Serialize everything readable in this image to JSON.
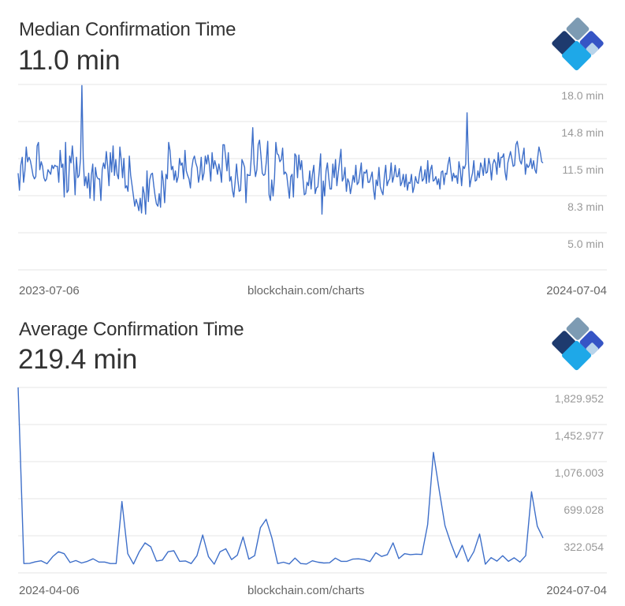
{
  "brand": {
    "logo_icon": "blockchain-diamond-logo-icon",
    "logo_colors": [
      "#7d9bb3",
      "#1e3a6e",
      "#3655c5",
      "#1ea8e8",
      "#b8d4ea"
    ],
    "line_color": "#3e6fc9",
    "grid_color": "#e5e5e5"
  },
  "charts": [
    {
      "title": "Median Confirmation Time",
      "value": "11.0 min",
      "yticks": [
        "18.0 min",
        "14.8 min",
        "11.5 min",
        "8.3 min",
        "5.0 min"
      ],
      "footer_left": "2023-07-06",
      "footer_center": "blockchain.com/charts",
      "footer_right": "2024-07-04"
    },
    {
      "title": "Average Confirmation Time",
      "value": "219.4 min",
      "yticks": [
        "1,829.952",
        "1,452.977",
        "1,076.003",
        "699.028",
        "322.054"
      ],
      "footer_left": "2024-04-06",
      "footer_center": "blockchain.com/charts",
      "footer_right": "2024-07-04"
    }
  ],
  "chart_data": [
    {
      "type": "line",
      "title": "Median Confirmation Time",
      "subtitle": "11.0 min",
      "xlabel": "",
      "ylabel": "min",
      "x_start": "2023-07-06",
      "x_end": "2024-07-04",
      "yticks": [
        18.0,
        14.8,
        11.5,
        8.3,
        5.0
      ],
      "ylim": [
        1.7,
        18.0
      ],
      "grid": true,
      "legend": "none",
      "source": "blockchain.com/charts",
      "values": [
        10.2,
        8.7,
        10.9,
        11.6,
        9.4,
        10.4,
        12.5,
        11.2,
        11.6,
        11.3,
        10.7,
        10.0,
        9.7,
        9.9,
        12.6,
        12.9,
        10.5,
        11.2,
        10.8,
        9.8,
        9.5,
        9.7,
        10.5,
        10.3,
        10.1,
        10.9,
        10.6,
        10.9,
        10.8,
        10.8,
        9.4,
        12.2,
        10.7,
        11.0,
        8.1,
        12.9,
        8.5,
        8.7,
        11.7,
        11.1,
        12.6,
        10.9,
        8.3,
        11.6,
        9.8,
        10.0,
        11.5,
        17.9,
        11.5,
        9.1,
        9.9,
        8.9,
        10.2,
        8.0,
        10.0,
        11.0,
        7.8,
        10.7,
        9.9,
        9.7,
        9.7,
        7.8,
        10.5,
        11.1,
        10.6,
        12.1,
        10.8,
        9.1,
        12.0,
        10.3,
        12.6,
        10.0,
        11.4,
        10.1,
        9.7,
        12.5,
        11.4,
        9.8,
        11.5,
        8.9,
        9.1,
        8.6,
        11.7,
        10.0,
        9.1,
        8.2,
        7.3,
        7.9,
        7.5,
        6.9,
        8.0,
        6.7,
        9.0,
        8.4,
        6.6,
        10.4,
        7.7,
        9.6,
        10.1,
        10.2,
        9.1,
        8.2,
        7.5,
        7.3,
        8.4,
        7.2,
        10.4,
        9.5,
        7.6,
        10.1,
        9.7,
        12.9,
        12.2,
        10.5,
        10.8,
        9.6,
        10.4,
        9.4,
        9.9,
        11.5,
        10.9,
        11.1,
        9.7,
        12.2,
        10.4,
        10.0,
        9.7,
        8.9,
        10.6,
        11.4,
        11.7,
        11.1,
        10.7,
        9.4,
        10.1,
        11.6,
        9.6,
        10.2,
        11.7,
        11.0,
        11.8,
        10.9,
        9.5,
        12.0,
        10.6,
        11.3,
        10.8,
        10.1,
        11.0,
        10.4,
        9.4,
        12.7,
        12.7,
        11.6,
        10.4,
        12.0,
        9.5,
        9.9,
        8.7,
        8.1,
        9.4,
        11.0,
        9.6,
        8.6,
        8.7,
        11.4,
        11.1,
        10.7,
        7.6,
        10.1,
        10.0,
        10.0,
        11.8,
        14.2,
        11.0,
        9.9,
        10.5,
        12.7,
        13.1,
        11.8,
        10.2,
        10.0,
        10.1,
        11.2,
        13.0,
        8.3,
        7.8,
        9.6,
        8.2,
        9.8,
        12.9,
        11.9,
        11.8,
        11.2,
        11.4,
        12.4,
        10.1,
        10.3,
        10.1,
        9.0,
        8.0,
        9.9,
        10.1,
        8.1,
        11.9,
        11.7,
        9.8,
        11.8,
        10.5,
        11.3,
        9.7,
        8.3,
        8.4,
        9.4,
        9.1,
        10.4,
        8.8,
        10.1,
        10.9,
        8.4,
        8.9,
        9.0,
        10.3,
        11.9,
        6.6,
        9.5,
        8.2,
        10.4,
        11.1,
        9.8,
        8.8,
        8.8,
        11.0,
        9.8,
        11.4,
        9.1,
        10.2,
        11.3,
        12.3,
        9.5,
        9.8,
        10.7,
        8.6,
        9.7,
        9.4,
        8.4,
        9.1,
        10.0,
        9.4,
        10.9,
        9.2,
        9.4,
        10.2,
        11.1,
        8.9,
        10.3,
        10.2,
        10.5,
        9.4,
        9.4,
        9.8,
        10.3,
        8.8,
        7.9,
        9.6,
        9.1,
        10.7,
        9.0,
        8.6,
        8.3,
        9.9,
        10.9,
        9.1,
        9.5,
        9.7,
        11.1,
        9.4,
        9.9,
        10.9,
        9.9,
        9.9,
        10.6,
        9.1,
        9.4,
        10.1,
        9.0,
        10.1,
        8.7,
        9.4,
        9.3,
        10.1,
        8.5,
        9.0,
        9.9,
        9.4,
        9.3,
        10.2,
        10.8,
        9.5,
        9.7,
        10.5,
        9.3,
        11.3,
        9.4,
        10.5,
        10.9,
        9.5,
        9.6,
        9.9,
        9.2,
        9.7,
        8.8,
        10.3,
        10.4,
        9.2,
        10.2,
        10.1,
        11.0,
        11.6,
        10.5,
        9.5,
        10.2,
        9.8,
        10.0,
        9.3,
        11.2,
        10.5,
        9.1,
        10.8,
        10.6,
        11.0,
        15.5,
        11.3,
        9.0,
        9.7,
        10.2,
        11.3,
        9.5,
        9.6,
        10.4,
        9.8,
        11.1,
        10.7,
        10.0,
        11.5,
        10.2,
        10.3,
        11.5,
        10.9,
        9.6,
        11.0,
        11.4,
        11.1,
        10.1,
        12.0,
        10.7,
        11.6,
        11.6,
        11.9,
        10.3,
        9.6,
        11.1,
        11.6,
        12.1,
        11.5,
        10.8,
        10.9,
        12.7,
        13.0,
        12.2,
        11.3,
        11.0,
        11.7,
        12.4,
        10.1,
        11.0,
        10.7,
        10.9,
        11.5,
        10.6,
        11.3,
        10.5,
        10.2,
        11.5,
        12.5,
        12.0,
        11.2,
        11.1
      ]
    },
    {
      "type": "line",
      "title": "Average Confirmation Time",
      "subtitle": "219.4 min",
      "xlabel": "",
      "ylabel": "min",
      "x_start": "2024-04-06",
      "x_end": "2024-07-04",
      "yticks": [
        1829.952,
        1452.977,
        1076.003,
        699.028,
        322.054
      ],
      "ylim": [
        -54.9,
        1829.952
      ],
      "grid": true,
      "legend": "none",
      "source": "blockchain.com/charts",
      "values": [
        1830,
        40,
        42,
        58,
        68,
        38,
        110,
        160,
        140,
        50,
        70,
        45,
        62,
        88,
        55,
        55,
        40,
        40,
        670,
        140,
        35,
        160,
        250,
        210,
        65,
        75,
        160,
        170,
        62,
        66,
        40,
        120,
        330,
        110,
        33,
        160,
        190,
        80,
        125,
        310,
        85,
        120,
        405,
        490,
        300,
        40,
        53,
        36,
        95,
        40,
        35,
        68,
        53,
        45,
        48,
        95,
        62,
        62,
        85,
        88,
        80,
        60,
        150,
        112,
        130,
        250,
        90,
        140,
        130,
        135,
        132,
        435,
        1170,
        785,
        425,
        250,
        100,
        225,
        60,
        160,
        340,
        33,
        100,
        65,
        120,
        62,
        98,
        55,
        120,
        770,
        420,
        300
      ]
    }
  ]
}
